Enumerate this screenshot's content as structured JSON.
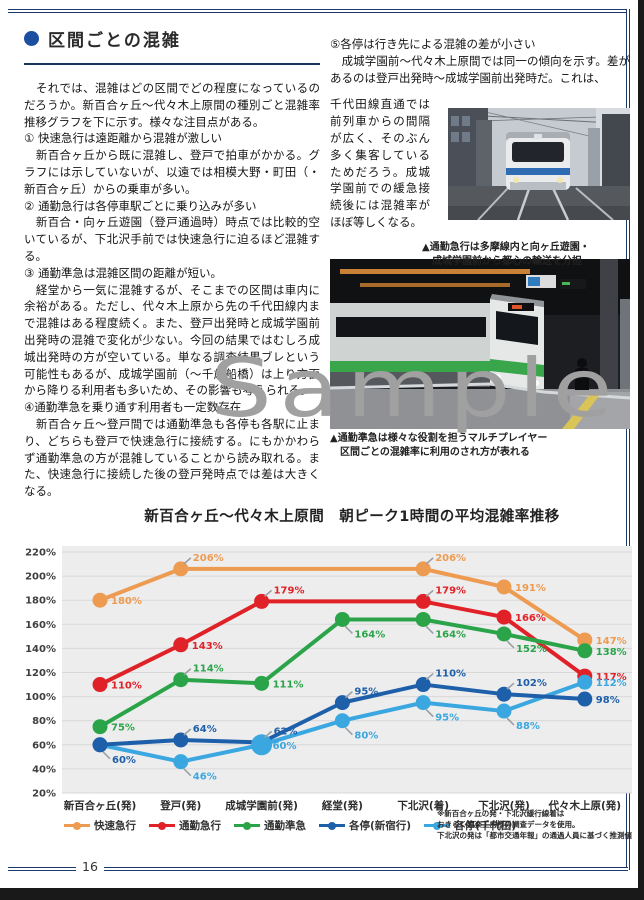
{
  "page": {
    "number": "16"
  },
  "header": {
    "title": "区間ごとの混雑"
  },
  "watermark": "Sample",
  "article": {
    "left": [
      "　それでは、混雑はどの区間でどの程度になっているのだろうか。新百合ヶ丘～代々木上原間の種別ごと混雑率推移グラフを下に示す。様々な注目点がある。",
      "① 快速急行は遠距離から混雑が激しい",
      "　新百合ヶ丘から既に混雑し、登戸で拍車がかかる。グラフには示していないが、以遠では相模大野・町田（・新百合ヶ丘）からの乗車が多い。",
      "② 通勤急行は各停車駅ごとに乗り込みが多い",
      "　新百合・向ヶ丘遊園（登戸通過時）時点では比較的空いているが、下北沢手前では快速急行に迫るほど混雑する。",
      "③ 通勤準急は混雑区間の距離が短い。",
      "　経堂から一気に混雑するが、そこまでの区間は車内に余裕がある。ただし、代々木上原から先の千代田線内まで混雑はある程度続く。また、登戸出発時と成城学園前出発時の混雑で変化が少ない。今回の結果ではむしろ成城出発時の方が空いている。単なる調査結果ブレという可能性もあるが、成城学園前（～千歳船橋）は上り方面から降りる利用者も多いため、その影響も考えられる。",
      "④通勤準急を乗り通す利用者も一定数存在",
      "　新百合ヶ丘～登戸間では通勤準急も各停も各駅に止まり、どちらも登戸で快速急行に接続する。にもかかわらず通勤準急の方が混雑していることから読み取れる。また、快速急行に接続した後の登戸発時点では差は大きくなる。"
    ],
    "right": [
      "⑤各停は行き先による混雑の差が小さい",
      "　成城学園前～代々木上原間では同一の傾向を示す。差があるのは登戸出発時～成城学園前出発時だ。これは、",
      "千代田線直通では前列車からの間隔が広く、そのぶん多く集客しているためだろう。成城学園前での緩急接続後には混雑率がほぼ等しくなる。"
    ]
  },
  "photos": {
    "photo1": {
      "caption": [
        "▲通勤急行は多摩線内と向ヶ丘遊園・",
        "　成城学園前から都心の輸送を分担"
      ]
    },
    "photo2": {
      "caption": [
        "▲通勤準急は様々な役割を担うマルチプレイヤー",
        "　区間ごとの混雑率に利用のされ方が表れる"
      ]
    }
  },
  "chart_data": {
    "type": "line",
    "title": "新百合ヶ丘～代々木上原間　朝ピーク1時間の平均混雑率推移",
    "categories": [
      "新百合ヶ丘(発)",
      "登戸(発)",
      "成城学園前(発)",
      "経堂(発)",
      "下北沢(着)",
      "下北沢(発)",
      "代々木上原(発)"
    ],
    "ylabel": "混雑率(%)",
    "ylim": [
      20,
      220
    ],
    "ytick_step": 20,
    "grid": true,
    "legend_position": "bottom",
    "plot_bg": "#ededee",
    "grid_color": "#d8d8d9",
    "draw_order": [
      0,
      1,
      2,
      4,
      3
    ],
    "series": [
      {
        "name": "快速急行",
        "color": "#ED9B51",
        "values": [
          180,
          206,
          null,
          null,
          206,
          191,
          147
        ],
        "label_pos": [
          "r",
          "ar",
          null,
          null,
          "ar",
          "r",
          "r"
        ]
      },
      {
        "name": "通勤急行",
        "color": "#E02127",
        "values": [
          110,
          143,
          179,
          null,
          179,
          166,
          117
        ],
        "label_pos": [
          "r",
          "r",
          "ar",
          null,
          "ar",
          "r",
          "r"
        ]
      },
      {
        "name": "通勤準急",
        "color": "#2BA449",
        "values": [
          75,
          114,
          111,
          164,
          164,
          152,
          138
        ],
        "label_pos": [
          "r",
          "ar",
          "r",
          "br",
          "br",
          "br",
          "r"
        ]
      },
      {
        "name": "各停(新宿行)",
        "color": "#1E5FA9",
        "values": [
          60,
          64,
          62,
          95,
          110,
          102,
          98
        ],
        "label_pos": [
          "br",
          "ar",
          "ar",
          "ar",
          "ar",
          "ar",
          "r"
        ]
      },
      {
        "name": "各停(千代田)",
        "color": "#3BA7E0",
        "values": [
          60,
          46,
          60,
          80,
          95,
          88,
          112
        ],
        "label_pos": [
          null,
          "br",
          "r",
          "br",
          "br",
          "br",
          "r"
        ],
        "emphasis_index": 2
      }
    ]
  },
  "footnote": {
    "lines": [
      "※新百合ヶ丘の発・下北沢緩行線着は",
      "おきらく娯楽工房様の調査データを使用。",
      "下北沢の発は「都市交通年報」の通過人員に基づく推測値"
    ]
  }
}
